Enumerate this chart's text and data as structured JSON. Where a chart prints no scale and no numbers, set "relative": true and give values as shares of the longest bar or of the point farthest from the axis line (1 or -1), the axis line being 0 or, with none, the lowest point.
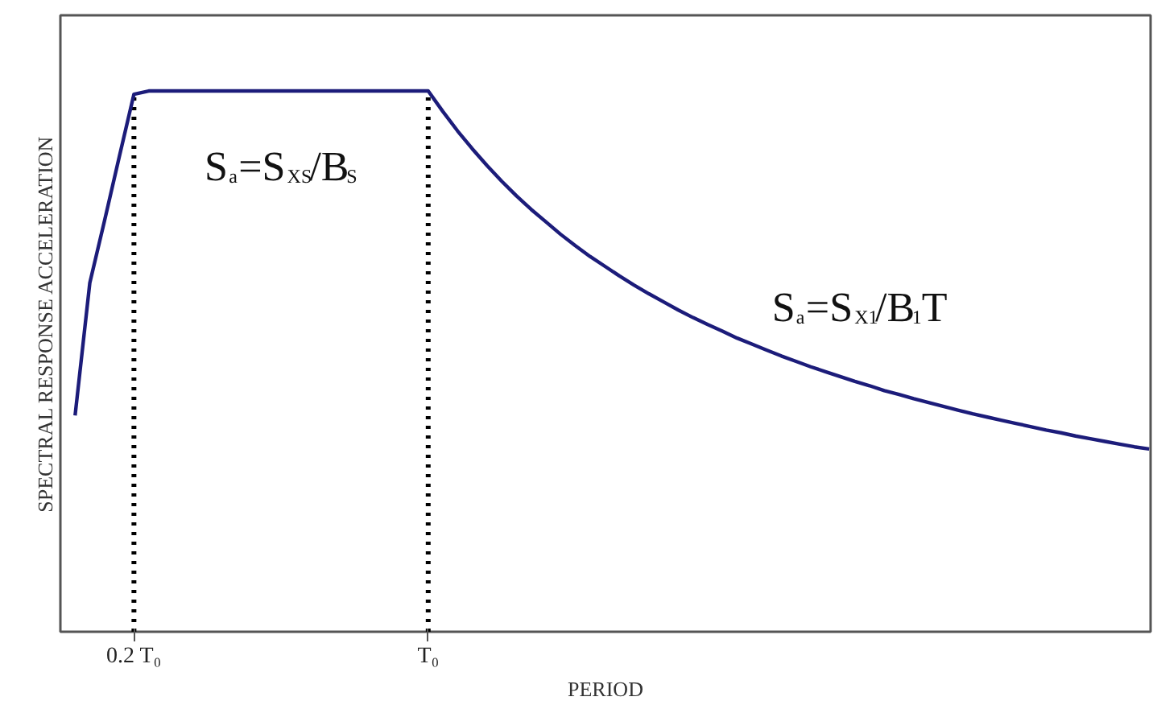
{
  "chart_data": {
    "type": "line",
    "relative": true,
    "xlabel": "PERIOD",
    "ylabel": "SPECTRAL RESPONSE ACCELERATION",
    "categories": [
      null,
      null,
      null,
      null,
      "0.2 T₀",
      null,
      null,
      null,
      null,
      null,
      null,
      null,
      null,
      null,
      null,
      null,
      null,
      null,
      null,
      null,
      null,
      null,
      null,
      null,
      "T₀",
      null,
      null,
      null,
      null,
      null,
      null,
      null,
      null,
      null,
      null,
      null,
      null,
      null,
      null,
      null,
      null,
      null,
      null,
      null,
      null,
      null,
      null,
      null,
      null,
      null,
      null,
      null,
      null,
      null,
      null,
      null,
      null,
      null,
      null,
      null,
      null,
      null,
      null,
      null,
      null,
      null,
      null,
      null,
      null,
      null,
      null,
      null,
      null,
      null
    ],
    "series": [
      {
        "color": "#1c1c7a",
        "values": [
          0.4,
          0.645,
          0.76,
          0.878,
          0.994,
          1.0,
          1.0,
          1.0,
          1.0,
          1.0,
          1.0,
          1.0,
          1.0,
          1.0,
          1.0,
          1.0,
          1.0,
          1.0,
          1.0,
          1.0,
          1.0,
          1.0,
          1.0,
          1.0,
          1.0,
          0.962,
          0.926,
          0.893,
          0.862,
          0.833,
          0.806,
          0.781,
          0.758,
          0.735,
          0.714,
          0.694,
          0.676,
          0.658,
          0.641,
          0.625,
          0.61,
          0.595,
          0.581,
          0.568,
          0.556,
          0.543,
          0.532,
          0.521,
          0.51,
          0.5,
          0.49,
          0.481,
          0.472,
          0.463,
          0.455,
          0.446,
          0.439,
          0.431,
          0.424,
          0.417,
          0.41,
          0.403,
          0.397,
          0.391,
          0.385,
          0.379,
          0.373,
          0.368,
          0.362,
          0.357,
          0.352,
          0.347,
          0.342,
          0.338
        ]
      }
    ],
    "grid": false,
    "marker": "none",
    "line_style": "solid",
    "ref_lines": [
      {
        "axis": "x",
        "value": "0.2 T₀",
        "color": "#000000",
        "line_style": "dotted"
      },
      {
        "axis": "x",
        "value": "T₀",
        "color": "#000000",
        "line_style": "dotted"
      }
    ],
    "annotations": [
      "S$_{a}$=S$_{XS}$/B$_{S}$",
      "S$_{a}$=S$_{X1}$/B$_{1}$T"
    ]
  }
}
